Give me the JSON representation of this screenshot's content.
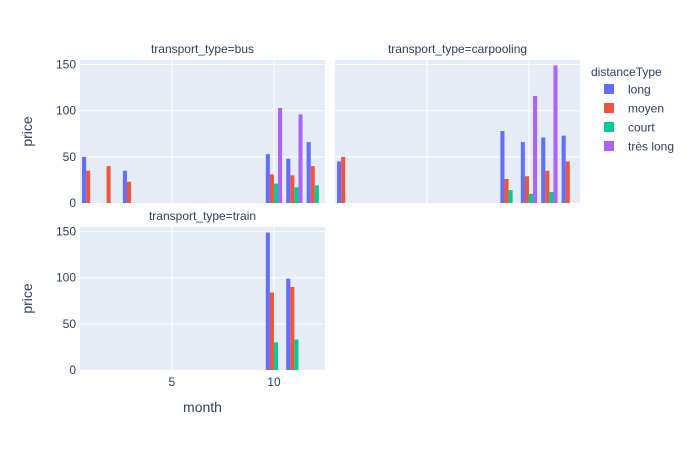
{
  "chart_data": {
    "type": "bar",
    "xlabel": "month",
    "ylabel": "price",
    "x_ticks": [
      5,
      10
    ],
    "y_ticks": [
      0,
      50,
      100,
      150
    ],
    "xlim": [
      0.5,
      12.5
    ],
    "ylim": [
      0,
      155
    ],
    "legend": {
      "title": "distanceType",
      "placement": "right",
      "entries": [
        {
          "name": "long",
          "color": "#636efa"
        },
        {
          "name": "moyen",
          "color": "#EF553B"
        },
        {
          "name": "court",
          "color": "#00cc96"
        },
        {
          "name": "très long",
          "color": "#ab63fa"
        }
      ]
    },
    "facets": [
      {
        "title": "transport_type=bus",
        "series": [
          {
            "name": "long",
            "points": [
              [
                1,
                50
              ],
              [
                3,
                35
              ],
              [
                10,
                53
              ],
              [
                11,
                48
              ],
              [
                12,
                66
              ]
            ]
          },
          {
            "name": "moyen",
            "points": [
              [
                1,
                35
              ],
              [
                2,
                40
              ],
              [
                3,
                23
              ],
              [
                10,
                31
              ],
              [
                11,
                30
              ],
              [
                12,
                40
              ]
            ]
          },
          {
            "name": "court",
            "points": [
              [
                10,
                21
              ],
              [
                11,
                17
              ],
              [
                12,
                19
              ]
            ]
          },
          {
            "name": "très long",
            "points": [
              [
                10,
                103
              ],
              [
                11,
                96
              ]
            ]
          }
        ]
      },
      {
        "title": "transport_type=carpooling",
        "series": [
          {
            "name": "long",
            "points": [
              [
                1,
                45
              ],
              [
                9,
                78
              ],
              [
                10,
                66
              ],
              [
                11,
                71
              ],
              [
                12,
                73
              ]
            ]
          },
          {
            "name": "moyen",
            "points": [
              [
                1,
                50
              ],
              [
                9,
                26
              ],
              [
                10,
                29
              ],
              [
                11,
                35
              ],
              [
                12,
                45
              ]
            ]
          },
          {
            "name": "court",
            "points": [
              [
                9,
                14
              ],
              [
                10,
                10
              ],
              [
                11,
                12
              ]
            ]
          },
          {
            "name": "très long",
            "points": [
              [
                10,
                116
              ],
              [
                11,
                149
              ]
            ]
          }
        ]
      },
      {
        "title": "transport_type=train",
        "series": [
          {
            "name": "long",
            "points": [
              [
                10,
                149
              ],
              [
                11,
                99
              ]
            ]
          },
          {
            "name": "moyen",
            "points": [
              [
                10,
                84
              ],
              [
                11,
                90
              ]
            ]
          },
          {
            "name": "court",
            "points": [
              [
                10,
                30
              ],
              [
                11,
                33
              ]
            ]
          },
          {
            "name": "très long",
            "points": []
          }
        ]
      }
    ]
  }
}
